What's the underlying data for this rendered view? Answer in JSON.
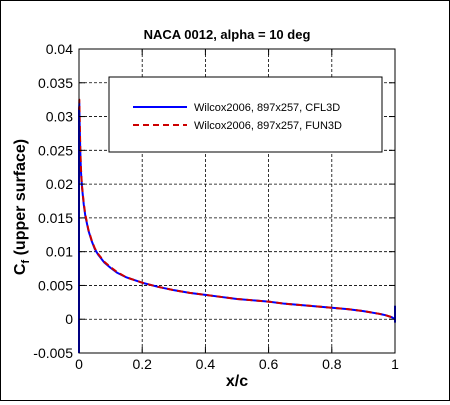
{
  "chart_data": {
    "type": "line",
    "title": "NACA 0012, alpha = 10 deg",
    "xlabel": "x/c",
    "ylabel_main": "C",
    "ylabel_sub": "f",
    "ylabel_rest": " (upper surface)",
    "xlim": [
      0,
      1
    ],
    "ylim": [
      -0.005,
      0.04
    ],
    "xticks": [
      0,
      0.2,
      0.4,
      0.6,
      0.8,
      1
    ],
    "xtick_labels": [
      "0",
      "0.2",
      "0.4",
      "0.6",
      "0.8",
      "1"
    ],
    "yticks": [
      -0.005,
      0,
      0.005,
      0.01,
      0.015,
      0.02,
      0.025,
      0.03,
      0.035,
      0.04
    ],
    "ytick_labels": [
      "-0.005",
      "0",
      "0.005",
      "0.01",
      "0.015",
      "0.02",
      "0.025",
      "0.03",
      "0.035",
      "0.04"
    ],
    "grid": true,
    "legend_position": "top-right",
    "series": [
      {
        "name": "Wilcox2006, 897x257, CFL3D",
        "color": "#0000ff",
        "dash": "solid",
        "x": [
          0,
          0.001,
          0.002,
          0.004,
          0.006,
          0.008,
          0.01,
          0.015,
          0.02,
          0.03,
          0.04,
          0.05,
          0.06,
          0.08,
          0.1,
          0.12,
          0.15,
          0.2,
          0.25,
          0.3,
          0.35,
          0.4,
          0.45,
          0.5,
          0.55,
          0.6,
          0.65,
          0.7,
          0.75,
          0.8,
          0.85,
          0.9,
          0.95,
          0.97,
          0.99,
          1.0
        ],
        "y": [
          0.031,
          0.032,
          0.029,
          0.025,
          0.022,
          0.0205,
          0.0193,
          0.017,
          0.0153,
          0.0131,
          0.0116,
          0.0104,
          0.0096,
          0.0084,
          0.0076,
          0.0069,
          0.0062,
          0.0054,
          0.0048,
          0.0043,
          0.0039,
          0.0036,
          0.0033,
          0.003,
          0.0028,
          0.0026,
          0.0023,
          0.0021,
          0.0019,
          0.0017,
          0.0015,
          0.0012,
          0.0008,
          0.0006,
          0.0003,
          0.0
        ]
      },
      {
        "name": "Wilcox2006, 897x257, FUN3D",
        "color": "#cc0000",
        "dash": "dashed",
        "x": [
          0,
          0.001,
          0.002,
          0.004,
          0.006,
          0.008,
          0.01,
          0.015,
          0.02,
          0.03,
          0.04,
          0.05,
          0.06,
          0.08,
          0.1,
          0.12,
          0.15,
          0.2,
          0.25,
          0.3,
          0.35,
          0.4,
          0.45,
          0.5,
          0.55,
          0.6,
          0.65,
          0.7,
          0.75,
          0.8,
          0.85,
          0.9,
          0.95,
          0.97,
          0.99,
          1.0
        ],
        "y": [
          0.029,
          0.0325,
          0.03,
          0.0255,
          0.0225,
          0.0208,
          0.0195,
          0.0172,
          0.0155,
          0.0132,
          0.0117,
          0.0105,
          0.0097,
          0.0085,
          0.0077,
          0.007,
          0.0062,
          0.0054,
          0.0048,
          0.0043,
          0.0039,
          0.0036,
          0.0033,
          0.003,
          0.0028,
          0.0026,
          0.0023,
          0.0021,
          0.0019,
          0.0017,
          0.0015,
          0.0012,
          0.0008,
          0.0006,
          0.0003,
          0.0
        ]
      }
    ]
  }
}
